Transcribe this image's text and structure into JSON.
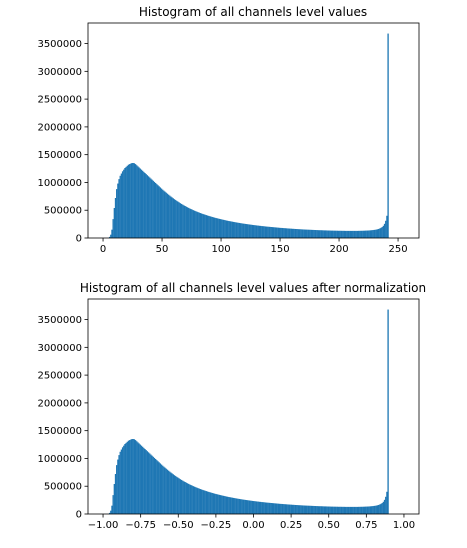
{
  "chart_data": [
    {
      "type": "bar",
      "subtype": "histogram",
      "title": "Histogram of all channels level values",
      "xlabel": "",
      "ylabel": "",
      "color": "#1f77b4",
      "grid": false,
      "xlim": [
        -12.75,
        267.75
      ],
      "ylim": [
        0,
        3870000
      ],
      "xticks": [
        0,
        50,
        100,
        150,
        200,
        250
      ],
      "xtick_labels": [
        "0",
        "50",
        "100",
        "150",
        "200",
        "250"
      ],
      "yticks": [
        0,
        500000,
        1000000,
        1500000,
        2000000,
        2500000,
        3000000,
        3500000
      ],
      "ytick_labels": [
        "0",
        "500000",
        "1000000",
        "1500000",
        "2000000",
        "2500000",
        "3000000",
        "3500000"
      ],
      "bin_start": 0,
      "bin_width": 1,
      "values": [
        0,
        0,
        0,
        0,
        0,
        20000,
        60000,
        150000,
        340000,
        540000,
        720000,
        880000,
        980000,
        1060000,
        1120000,
        1160000,
        1200000,
        1230000,
        1260000,
        1280000,
        1300000,
        1320000,
        1330000,
        1340000,
        1350000,
        1350000,
        1345000,
        1330000,
        1310000,
        1290000,
        1270000,
        1250000,
        1230000,
        1210000,
        1190000,
        1170000,
        1150000,
        1130000,
        1110000,
        1090000,
        1070000,
        1050000,
        1030000,
        1010000,
        990000,
        970000,
        950000,
        930000,
        910000,
        890000,
        870000,
        852000,
        834000,
        816000,
        798000,
        780000,
        763000,
        746000,
        730000,
        714000,
        698000,
        683000,
        668000,
        654000,
        640000,
        626000,
        613000,
        600000,
        588000,
        576000,
        564000,
        553000,
        542000,
        531000,
        521000,
        511000,
        501000,
        492000,
        483000,
        474000,
        465000,
        457000,
        449000,
        441000,
        433000,
        426000,
        419000,
        412000,
        405000,
        398000,
        392000,
        385000,
        379000,
        373000,
        367000,
        361000,
        356000,
        350000,
        345000,
        340000,
        335000,
        330000,
        325000,
        320000,
        315000,
        311000,
        306000,
        302000,
        298000,
        294000,
        290000,
        286000,
        282000,
        278000,
        274000,
        271000,
        267000,
        264000,
        260000,
        257000,
        254000,
        251000,
        248000,
        245000,
        242000,
        239000,
        236000,
        233000,
        231000,
        228000,
        225000,
        223000,
        220000,
        218000,
        215000,
        213000,
        211000,
        208000,
        206000,
        204000,
        202000,
        200000,
        198000,
        196000,
        194000,
        192000,
        190000,
        188000,
        186000,
        184000,
        182000,
        181000,
        179000,
        177000,
        176000,
        174000,
        172000,
        171000,
        169000,
        168000,
        166000,
        165000,
        163000,
        162000,
        161000,
        159000,
        158000,
        157000,
        155000,
        154000,
        153000,
        152000,
        151000,
        150000,
        149000,
        148000,
        147000,
        146000,
        145000,
        144000,
        143000,
        142000,
        141000,
        140000,
        140000,
        139000,
        138000,
        137000,
        137000,
        136000,
        135000,
        135000,
        134000,
        133000,
        133000,
        132000,
        132000,
        131000,
        131000,
        130000,
        130000,
        130000,
        129000,
        129000,
        129000,
        128000,
        128000,
        128000,
        128000,
        128000,
        128000,
        128000,
        128000,
        128000,
        128000,
        128000,
        129000,
        129000,
        130000,
        130000,
        131000,
        132000,
        133000,
        134000,
        135000,
        136000,
        138000,
        140000,
        142000,
        145000,
        148000,
        152000,
        157000,
        163000,
        172000,
        183000,
        198000,
        220000,
        255000,
        310000,
        400000,
        3680000
      ]
    },
    {
      "type": "bar",
      "subtype": "histogram",
      "title": "Histogram of all channels level values after normalization",
      "xlabel": "",
      "ylabel": "",
      "color": "#1f77b4",
      "grid": false,
      "xlim": [
        -1.1,
        1.1
      ],
      "ylim": [
        0,
        3870000
      ],
      "xticks": [
        -1.0,
        -0.75,
        -0.5,
        -0.25,
        0.0,
        0.25,
        0.5,
        0.75,
        1.0
      ],
      "xtick_labels": [
        "−1.00",
        "−0.75",
        "−0.50",
        "−0.25",
        "0.00",
        "0.25",
        "0.50",
        "0.75",
        "1.00"
      ],
      "yticks": [
        0,
        500000,
        1000000,
        1500000,
        2000000,
        2500000,
        3000000,
        3500000
      ],
      "ytick_labels": [
        "0",
        "500000",
        "1000000",
        "1500000",
        "2000000",
        "2500000",
        "3000000",
        "3500000"
      ],
      "bin_start": -1.0,
      "bin_width": 0.00784313725
    }
  ]
}
